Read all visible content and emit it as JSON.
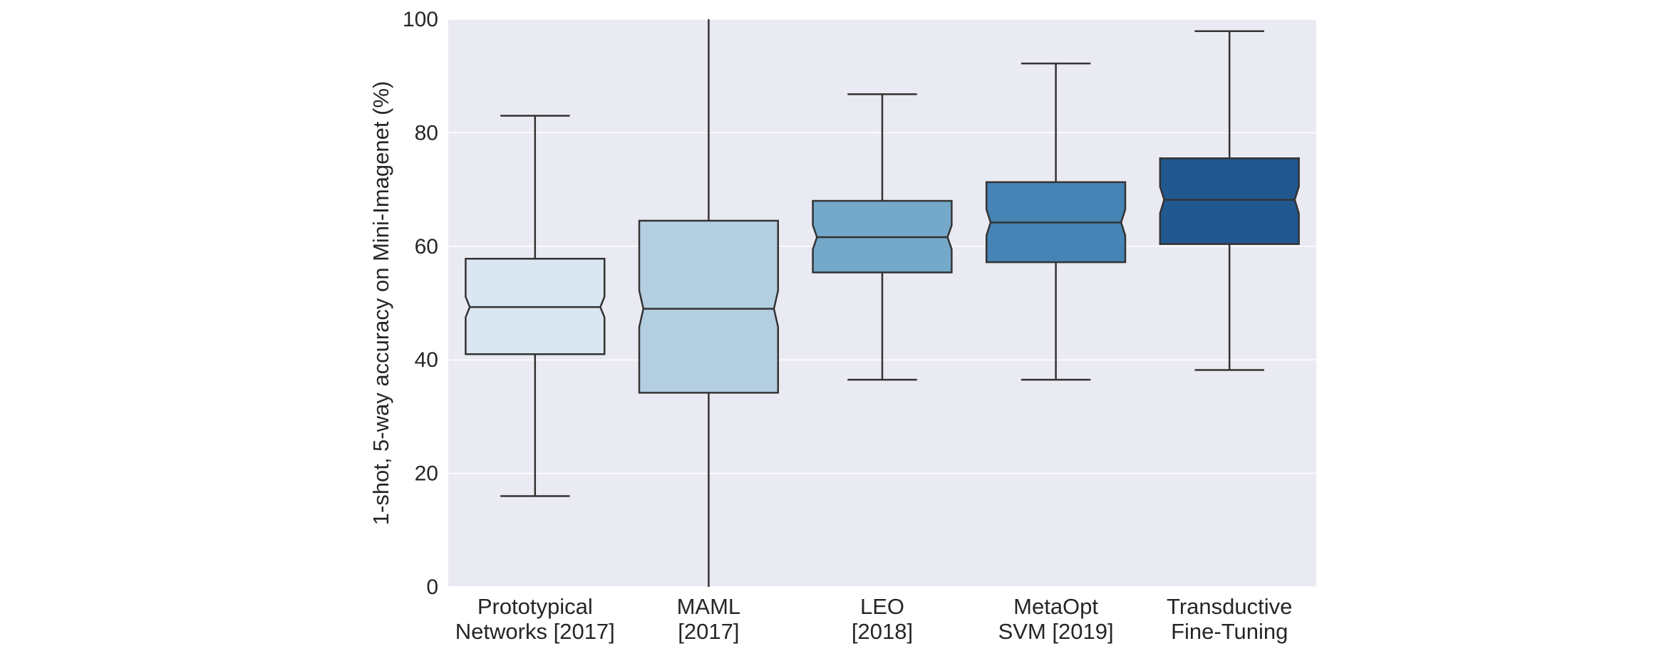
{
  "chart_data": {
    "type": "box",
    "title": "",
    "xlabel": "",
    "ylabel": "1-shot, 5-way accuracy on Mini-Imagenet (%)",
    "ylim": [
      0,
      100
    ],
    "yticks": [
      "0",
      "20",
      "40",
      "60",
      "80",
      "100"
    ],
    "grid": true,
    "notched": true,
    "categories": [
      {
        "lines": [
          "Prototypical",
          "Networks [2017]"
        ],
        "whisker_low": 16,
        "q1": 41,
        "median": 49.3,
        "q3": 57.8,
        "whisker_high": 83,
        "notch_low": 47.5,
        "notch_high": 51.1,
        "color": "#dae6f2"
      },
      {
        "lines": [
          "MAML",
          "[2017]"
        ],
        "whisker_low": 0,
        "q1": 34.2,
        "median": 49,
        "q3": 64.5,
        "whisker_high": 100,
        "notch_low": 45.8,
        "notch_high": 52.2,
        "color": "#b3cfe1"
      },
      {
        "lines": [
          "LEO",
          "[2018]"
        ],
        "whisker_low": 36.5,
        "q1": 55.4,
        "median": 61.6,
        "q3": 68,
        "whisker_high": 86.8,
        "notch_low": 59.5,
        "notch_high": 63.7,
        "color": "#74a9ca"
      },
      {
        "lines": [
          "MetaOpt",
          "SVM [2019]"
        ],
        "whisker_low": 36.5,
        "q1": 57.2,
        "median": 64.2,
        "q3": 71.3,
        "whisker_high": 92.2,
        "notch_low": 61.9,
        "notch_high": 66.5,
        "color": "#4584b4"
      },
      {
        "lines": [
          "Transductive",
          "Fine-Tuning"
        ],
        "whisker_low": 38.2,
        "q1": 60.4,
        "median": 68.2,
        "q3": 75.5,
        "whisker_high": 97.9,
        "notch_low": 65.8,
        "notch_high": 70.5,
        "color": "#21588f"
      }
    ],
    "colors": {
      "background": "#eaeaf2",
      "gridline": "#ffffff",
      "line": "#333333",
      "text": "#262626"
    }
  }
}
